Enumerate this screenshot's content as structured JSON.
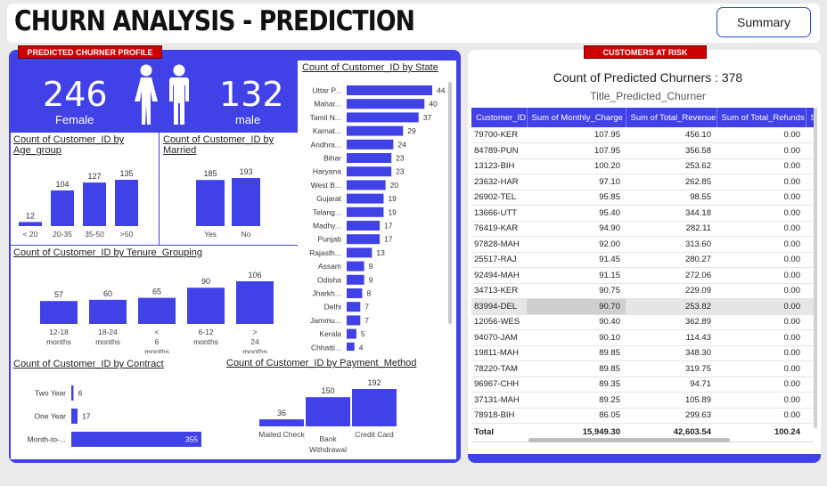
{
  "header": {
    "title": "CHURN ANALYSIS - PREDICTION",
    "summary_label": "Summary"
  },
  "tags": {
    "profile": "PREDICTED CHURNER PROFILE",
    "risk": "CUSTOMERS AT RISK"
  },
  "kpi": {
    "female_count": "246",
    "female_label": "Female",
    "male_count": "132",
    "male_label": "male"
  },
  "colors": {
    "accent": "#4141e8",
    "tag": "#cc0000"
  },
  "chart_data": [
    {
      "type": "bar",
      "title": "Count of Customer_ID by Age_group",
      "categories": [
        "< 20",
        "20-35",
        "35-50",
        ">50"
      ],
      "values": [
        12,
        104,
        127,
        135
      ]
    },
    {
      "type": "bar",
      "title": "Count of Customer_ID by Married",
      "categories": [
        "Yes",
        "No"
      ],
      "values": [
        185,
        193
      ]
    },
    {
      "type": "bar",
      "title": "Count of Customer_ID by Tenure_Grouping",
      "categories": [
        "12-18 months",
        "18-24 months",
        "< 6 months",
        "6-12 months",
        "> 24 months"
      ],
      "values": [
        57,
        60,
        65,
        90,
        106
      ]
    },
    {
      "type": "bar",
      "orientation": "horizontal",
      "title": "Count of Customer_ID by Contract",
      "categories": [
        "Two Year",
        "One Year",
        "Month-to-..."
      ],
      "values": [
        6,
        17,
        355
      ]
    },
    {
      "type": "bar",
      "title": "Count of Customer_ID by Payment_Method",
      "categories": [
        "Mailed Check",
        "Bank Withdrawal",
        "Credit Card"
      ],
      "values": [
        36,
        150,
        192
      ]
    },
    {
      "type": "bar",
      "orientation": "horizontal",
      "title": "Count of Customer_ID by State",
      "categories": [
        "Uttar P...",
        "Mahar...",
        "Tamil N...",
        "Karnat...",
        "Andhra...",
        "Bihar",
        "Haryana",
        "West B...",
        "Gujarat",
        "Telang...",
        "Madhy...",
        "Punjab",
        "Rajasth...",
        "Assam",
        "Odisha",
        "Jharkh...",
        "Delhi",
        "Jammu...",
        "Kerala",
        "Chhatti..."
      ],
      "values": [
        44,
        40,
        37,
        29,
        24,
        23,
        23,
        20,
        19,
        19,
        17,
        17,
        13,
        9,
        9,
        8,
        7,
        7,
        5,
        4
      ]
    }
  ],
  "risk": {
    "kpi_text": "Count of Predicted Churners : 378",
    "subtitle": "Title_Predicted_Churner",
    "columns": [
      "Customer_ID",
      "Sum of Monthly_Charge",
      "Sum of Total_Revenue",
      "Sum of Total_Refunds",
      "S"
    ],
    "rows": [
      [
        "79700-KER",
        "107.95",
        "456.10",
        "0.00"
      ],
      [
        "84789-PUN",
        "107.95",
        "356.58",
        "0.00"
      ],
      [
        "13123-BIH",
        "100.20",
        "253.62",
        "0.00"
      ],
      [
        "23632-HAR",
        "97.10",
        "262.85",
        "0.00"
      ],
      [
        "26902-TEL",
        "95.85",
        "98.55",
        "0.00"
      ],
      [
        "13666-UTT",
        "95.40",
        "344.18",
        "0.00"
      ],
      [
        "76419-KAR",
        "94.90",
        "282.11",
        "0.00"
      ],
      [
        "97828-MAH",
        "92.00",
        "313.60",
        "0.00"
      ],
      [
        "25517-RAJ",
        "91.45",
        "280.27",
        "0.00"
      ],
      [
        "92494-MAH",
        "91.15",
        "272.06",
        "0.00"
      ],
      [
        "34713-KER",
        "90.75",
        "229.09",
        "0.00"
      ],
      [
        "83994-DEL",
        "90.70",
        "253.82",
        "0.00"
      ],
      [
        "12056-WES",
        "90.40",
        "362.89",
        "0.00"
      ],
      [
        "94070-JAM",
        "90.10",
        "114.43",
        "0.00"
      ],
      [
        "19811-MAH",
        "89.85",
        "348.30",
        "0.00"
      ],
      [
        "78220-TAM",
        "89.85",
        "319.75",
        "0.00"
      ],
      [
        "96967-CHH",
        "89.35",
        "94.71",
        "0.00"
      ],
      [
        "37131-MAH",
        "89.25",
        "105.89",
        "0.00"
      ],
      [
        "78918-BIH",
        "86.05",
        "299.63",
        "0.00"
      ]
    ],
    "total": [
      "Total",
      "15,949.30",
      "42,603.54",
      "100.24"
    ]
  }
}
